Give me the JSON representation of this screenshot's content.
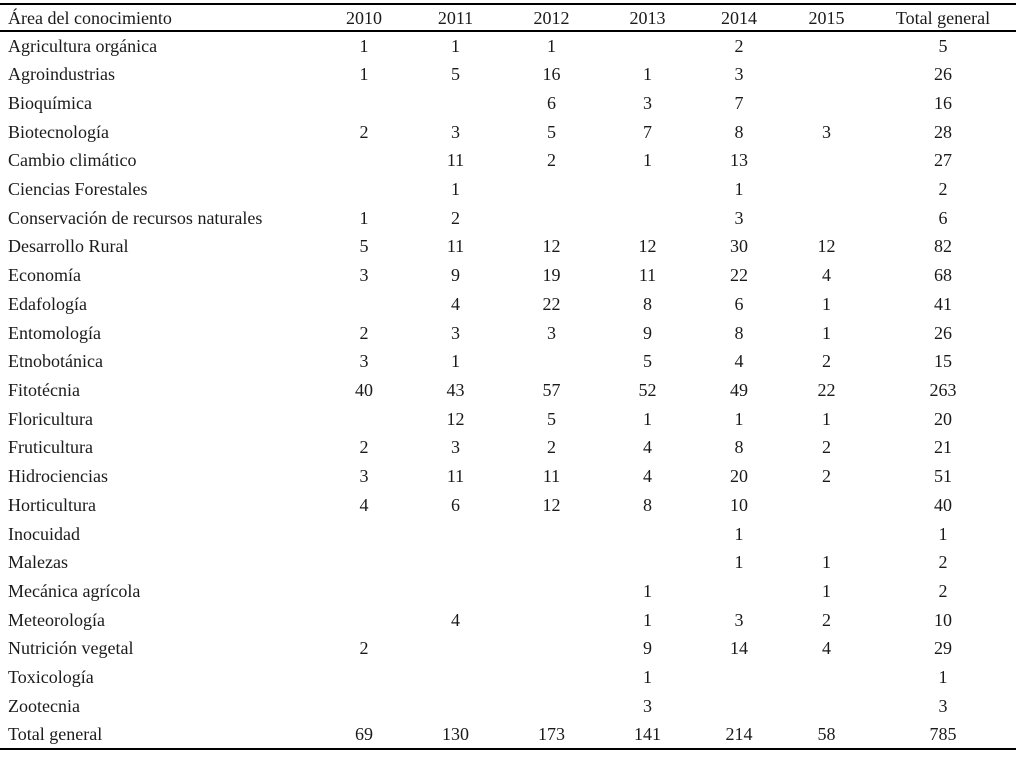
{
  "table": {
    "header": {
      "area": "Área del conocimiento",
      "columns": [
        "2010",
        "2011",
        "2012",
        "2013",
        "2014",
        "2015",
        "Total general"
      ]
    },
    "rows": [
      {
        "area": "Agricultura orgánica",
        "values": [
          "1",
          "1",
          "1",
          "",
          "2",
          "",
          "5"
        ]
      },
      {
        "area": "Agroindustrias",
        "values": [
          "1",
          "5",
          "16",
          "1",
          "3",
          "",
          "26"
        ]
      },
      {
        "area": "Bioquímica",
        "values": [
          "",
          "",
          "6",
          "3",
          "7",
          "",
          "16"
        ]
      },
      {
        "area": "Biotecnología",
        "values": [
          "2",
          "3",
          "5",
          "7",
          "8",
          "3",
          "28"
        ]
      },
      {
        "area": "Cambio climático",
        "values": [
          "",
          "11",
          "2",
          "1",
          "13",
          "",
          "27"
        ]
      },
      {
        "area": "Ciencias Forestales",
        "values": [
          "",
          "1",
          "",
          "",
          "1",
          "",
          "2"
        ]
      },
      {
        "area": "Conservación de recursos naturales",
        "values": [
          "1",
          "2",
          "",
          "",
          "3",
          "",
          "6"
        ]
      },
      {
        "area": "Desarrollo Rural",
        "values": [
          "5",
          "11",
          "12",
          "12",
          "30",
          "12",
          "82"
        ]
      },
      {
        "area": "Economía",
        "values": [
          "3",
          "9",
          "19",
          "11",
          "22",
          "4",
          "68"
        ]
      },
      {
        "area": "Edafología",
        "values": [
          "",
          "4",
          "22",
          "8",
          "6",
          "1",
          "41"
        ]
      },
      {
        "area": "Entomología",
        "values": [
          "2",
          "3",
          "3",
          "9",
          "8",
          "1",
          "26"
        ]
      },
      {
        "area": "Etnobotánica",
        "values": [
          "3",
          "1",
          "",
          "5",
          "4",
          "2",
          "15"
        ]
      },
      {
        "area": "Fitotécnia",
        "values": [
          "40",
          "43",
          "57",
          "52",
          "49",
          "22",
          "263"
        ]
      },
      {
        "area": "Floricultura",
        "values": [
          "",
          "12",
          "5",
          "1",
          "1",
          "1",
          "20"
        ]
      },
      {
        "area": "Fruticultura",
        "values": [
          "2",
          "3",
          "2",
          "4",
          "8",
          "2",
          "21"
        ]
      },
      {
        "area": "Hidrociencias",
        "values": [
          "3",
          "11",
          "11",
          "4",
          "20",
          "2",
          "51"
        ]
      },
      {
        "area": "Horticultura",
        "values": [
          "4",
          "6",
          "12",
          "8",
          "10",
          "",
          "40"
        ]
      },
      {
        "area": "Inocuidad",
        "values": [
          "",
          "",
          "",
          "",
          "1",
          "",
          "1"
        ]
      },
      {
        "area": "Malezas",
        "values": [
          "",
          "",
          "",
          "",
          "1",
          "1",
          "2"
        ]
      },
      {
        "area": "Mecánica agrícola",
        "values": [
          "",
          "",
          "",
          "1",
          "",
          "1",
          "2"
        ]
      },
      {
        "area": "Meteorología",
        "values": [
          "",
          "4",
          "",
          "1",
          "3",
          "2",
          "10"
        ]
      },
      {
        "area": "Nutrición vegetal",
        "values": [
          "2",
          "",
          "",
          "9",
          "14",
          "4",
          "29"
        ]
      },
      {
        "area": "Toxicología",
        "values": [
          "",
          "",
          "",
          "1",
          "",
          "",
          "1"
        ]
      },
      {
        "area": "Zootecnia",
        "values": [
          "",
          "",
          "",
          "3",
          "",
          "",
          "3"
        ]
      },
      {
        "area": "Total general",
        "values": [
          "69",
          "130",
          "173",
          "141",
          "214",
          "58",
          "785"
        ]
      }
    ],
    "colors": {
      "text": "#1a1a1a",
      "border": "#000000",
      "background": "#ffffff"
    }
  }
}
